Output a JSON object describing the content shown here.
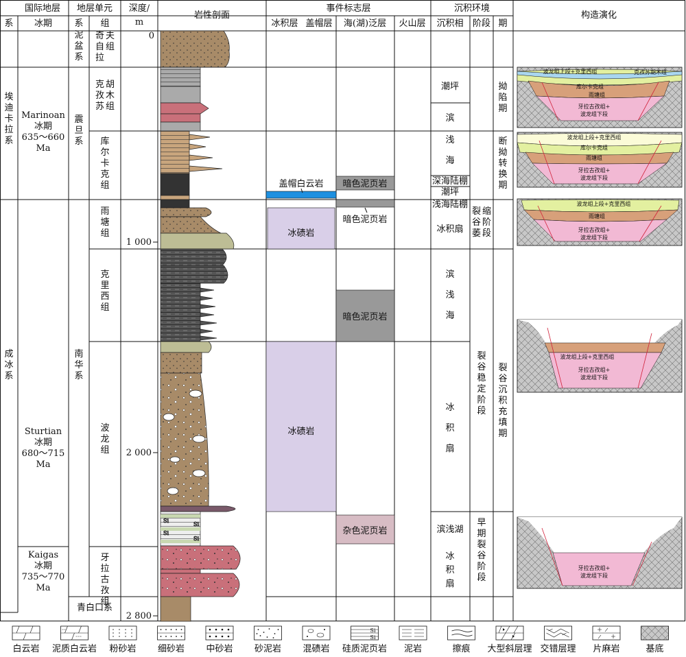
{
  "header": {
    "intl_strat": "国际地层",
    "sys": "系",
    "glacial": "冰期",
    "strat_unit": "地层单元",
    "sys2": "系",
    "group": "组",
    "depth": "深度/",
    "depth_unit": "m",
    "litho": "岩性剖面",
    "event": "事件标志层",
    "glacial_layer": "冰积层",
    "cap_layer": "盖帽层",
    "sea_layer": "海(湖)泛层",
    "volcanic": "火山层",
    "sed_env": "沉积环境",
    "facies": "沉积相",
    "stage": "阶段",
    "period": "期",
    "tectonic": "构造演化"
  },
  "systems": {
    "ediacaran": "埃迪卡拉系",
    "cryogenian": "成冰系",
    "nipen": "泥盆系",
    "sinian": "震旦系",
    "nanhua": "南华系",
    "qingbaikou": "青白口系"
  },
  "glacials": [
    {
      "name": "Marinoan",
      "label": "冰期",
      "age": "635～660",
      "unit": "Ma"
    },
    {
      "name": "Sturtian",
      "label": "冰期",
      "age": "680～715",
      "unit": "Ma"
    },
    {
      "name": "Kaigas",
      "label": "冰期",
      "age": "735～770",
      "unit": "Ma"
    }
  ],
  "groups": {
    "qizi": "奇自拉夫组",
    "keqi": "克孜苏胡木组",
    "kuer": "库尔卡克组",
    "yutang": "雨塘组",
    "kelixi": "克里西组",
    "bolong": "波龙组",
    "yala": "牙拉古孜组"
  },
  "depths": [
    "0",
    "1 000",
    "2 000",
    "2 800"
  ],
  "events": {
    "cap_dolomite": "盖帽白云岩",
    "dark_shale_1": "暗色泥页岩",
    "dark_shale_2": "暗色泥页岩",
    "dark_shale_3": "暗色泥页岩",
    "tillite_1": "冰碛岩",
    "tillite_2": "冰碛岩",
    "mixed_shale": "杂色泥页岩"
  },
  "facies": {
    "tidal_flat_1": "潮坪",
    "littoral_1": "滨",
    "shallow_sea": "浅海",
    "deep_shelf": "深海陆棚",
    "tidal_flat_2": "潮坪",
    "shallow_shelf": "浅海陆棚",
    "glacial_fan_1": "冰积扇",
    "littoral_shallow": "滨浅海",
    "glacial_fan_2": "冰积扇",
    "littoral_lake": "滨浅湖",
    "glacial_fan_3": "冰积扇"
  },
  "stages": {
    "rift_shrink": "裂谷萎缩阶段",
    "rift_stable": "裂谷稳定阶段",
    "early_rift": "早期裂谷阶段"
  },
  "periods": {
    "depression": "拗陷期",
    "transition": "断拗转换期",
    "rift_fill": "裂谷沉积充填期"
  },
  "tectonic_labels": {
    "p1_top": "波龙组上段+克里西组",
    "p1_keqi": "克孜苏胡木组",
    "p1_kuer": "库尔卡克组",
    "p1_yutang": "雨塘组",
    "p1_base": "牙拉古孜组+",
    "p1_base2": "波龙组下段",
    "p2_top": "波龙组上段+克里西组",
    "p2_kuer": "库尔卡克组",
    "p2_yutang": "雨塘组",
    "p2_base": "牙拉古孜组+",
    "p2_base2": "波龙组下段",
    "p3_top": "波龙组上段+克里西组",
    "p3_yutang": "雨塘组",
    "p3_base": "牙拉古孜组+",
    "p3_base2": "波龙组下段",
    "p4_top": "波龙组上段+克里西组",
    "p4_base": "牙拉古孜组+",
    "p4_base2": "波龙组下段",
    "p5_base": "牙拉古孜组+",
    "p5_base2": "波龙组下段"
  },
  "legend": [
    {
      "label": "白云岩",
      "pattern": "dolomite"
    },
    {
      "label": "泥质白云岩",
      "pattern": "muddy-dolomite"
    },
    {
      "label": "粉砂岩",
      "pattern": "siltstone"
    },
    {
      "label": "细砂岩",
      "pattern": "fine-sandstone"
    },
    {
      "label": "中砂岩",
      "pattern": "medium-sandstone"
    },
    {
      "label": "砂泥岩",
      "pattern": "sandy-mudstone"
    },
    {
      "label": "混碛岩",
      "pattern": "diamictite"
    },
    {
      "label": "硅质泥页岩",
      "pattern": "siliceous-shale"
    },
    {
      "label": "泥岩",
      "pattern": "mudstone"
    },
    {
      "label": "擦痕",
      "pattern": "striation"
    },
    {
      "label": "大型斜层理",
      "pattern": "large-cross-bedding"
    },
    {
      "label": "交错层理",
      "pattern": "cross-bedding"
    },
    {
      "label": "片麻岩",
      "pattern": "gneiss"
    },
    {
      "label": "基底",
      "pattern": "basement"
    }
  ],
  "si_label": "Si",
  "colors": {
    "sand": "#a88b68",
    "grey_dark": "#555555",
    "red": "#c9707a",
    "ice": "#d9cfe8",
    "cap": "#1e90e0",
    "shale_grey": "#999999",
    "mixed_shale": "#d7bcc4",
    "pink": "#f2b9d4",
    "yellow_green": "#e3f0a0",
    "brown": "#d7a07a"
  }
}
